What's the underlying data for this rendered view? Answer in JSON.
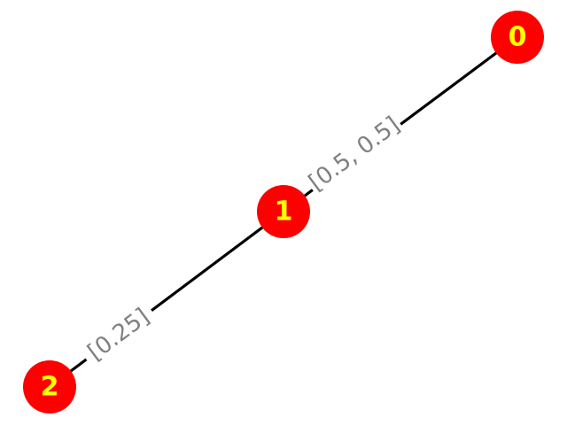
{
  "graph": {
    "nodes": [
      {
        "id": "0",
        "label": "0"
      },
      {
        "id": "1",
        "label": "1"
      },
      {
        "id": "2",
        "label": "2"
      }
    ],
    "edges": [
      {
        "source": "0",
        "target": "1",
        "label": "[0.5, 0.5]"
      },
      {
        "source": "1",
        "target": "2",
        "label": "[0.25]"
      }
    ],
    "colors": {
      "node_fill": "#ff0000",
      "node_text": "#ffff00",
      "edge_stroke": "#000000",
      "edge_label_text": "#808080"
    }
  }
}
